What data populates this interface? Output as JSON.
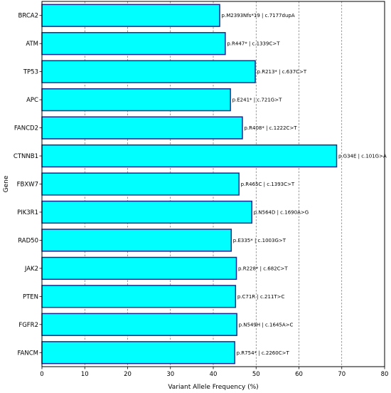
{
  "chart_data": {
    "type": "bar",
    "orientation": "horizontal",
    "title": "",
    "xlabel": "Variant Allele Frequency (%)",
    "ylabel": "Gene",
    "xlim": [
      0,
      80
    ],
    "xticks": [
      0,
      10,
      20,
      30,
      40,
      50,
      60,
      70,
      80
    ],
    "grid": "vertical dashed",
    "bar_color": "#00ffff",
    "bar_edge_color": "#1a2a8c",
    "categories": [
      "BRCA2",
      "ATM",
      "TP53",
      "APC",
      "FANCD2",
      "CTNNB1",
      "FBXW7",
      "PIK3R1",
      "RAD50",
      "JAK2",
      "PTEN",
      "FGFR2",
      "FANCM"
    ],
    "values": [
      41.5,
      42.8,
      49.8,
      44.0,
      46.8,
      68.8,
      46.0,
      49.0,
      44.2,
      45.4,
      45.2,
      45.5,
      45.0
    ],
    "data_labels": [
      "p.M2393Nfs*19 | c.7177dupA",
      "p.R447* | c.1339C>T",
      "p.R213* | c.637C>T",
      "p.E241* | c.721G>T",
      "p.R408* | c.1222C>T",
      "p.G34E | c.101G>A",
      "p.R465C | c.1393C>T",
      "p.N564D | c.1690A>G",
      "p.E335* | c.1003G>T",
      "p.R228* | c.682C>T",
      "p.C71R | c.211T>C",
      "p.N549H | c.1645A>C",
      "p.R754* | c.2260C>T"
    ]
  }
}
